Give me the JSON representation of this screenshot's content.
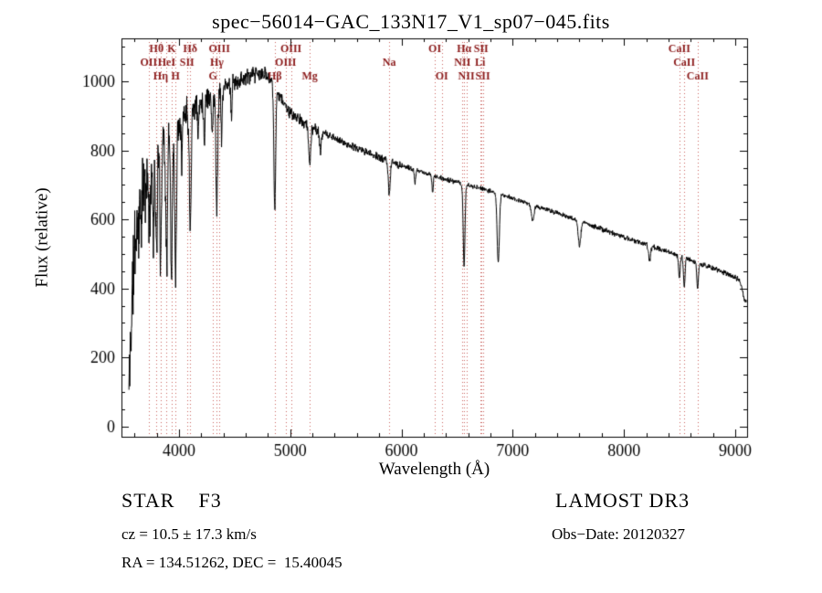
{
  "title": "spec−56014−GAC_133N17_V1_sp07−045.fits",
  "annotations": {
    "star_type": "STAR    F3",
    "survey": "LAMOST DR3",
    "cz": "cz = 10.5 ± 17.3 km/s",
    "obs_date": "Obs−Date: 20120327",
    "coords": "RA = 134.51262, DEC =  15.40045"
  },
  "chart_data": {
    "type": "line",
    "title": "spec−56014−GAC_133N17_V1_sp07−045.fits",
    "xlabel": "Wavelength (Å)",
    "ylabel": "Flux (relative)",
    "xlim": [
      3483,
      9107
    ],
    "ylim": [
      -30,
      1125
    ],
    "xticks": [
      4000,
      5000,
      6000,
      7000,
      8000,
      9000
    ],
    "yticks": [
      0,
      200,
      400,
      600,
      800,
      1000
    ],
    "x_minor_step": 200,
    "y_minor_step": 50,
    "grid": false,
    "legend": "none",
    "line_color": "#000000",
    "marker_color": "#c9615c",
    "marker_label_color": "#8b1a1a",
    "line_markers": [
      {
        "wl": 3798,
        "label": "Hθ",
        "row": 0
      },
      {
        "wl": 3933,
        "label": "K",
        "row": 0
      },
      {
        "wl": 4101,
        "label": "Hδ",
        "row": 0
      },
      {
        "wl": 4363,
        "label": "OIII",
        "row": 0
      },
      {
        "wl": 5007,
        "label": "OIII",
        "row": 0
      },
      {
        "wl": 6300,
        "label": "OI",
        "row": 0
      },
      {
        "wl": 6563,
        "label": "Hα",
        "row": 0
      },
      {
        "wl": 6716,
        "label": "SII",
        "row": 0
      },
      {
        "wl": 8498,
        "label": "CaII",
        "row": 0
      },
      {
        "wl": 3727,
        "label": "OII",
        "row": 1
      },
      {
        "wl": 3889,
        "label": "HeI",
        "row": 1
      },
      {
        "wl": 4072,
        "label": "SII",
        "row": 1
      },
      {
        "wl": 4340,
        "label": "Hγ",
        "row": 1
      },
      {
        "wl": 4959,
        "label": "OIII",
        "row": 1
      },
      {
        "wl": 5890,
        "label": "Na",
        "row": 1
      },
      {
        "wl": 6548,
        "label": "NII",
        "row": 1
      },
      {
        "wl": 6707,
        "label": "Li",
        "row": 1
      },
      {
        "wl": 8542,
        "label": "CaII",
        "row": 1
      },
      {
        "wl": 3835,
        "label": "Hη",
        "row": 2
      },
      {
        "wl": 3968,
        "label": "H",
        "row": 2
      },
      {
        "wl": 4305,
        "label": "G",
        "row": 2
      },
      {
        "wl": 4861,
        "label": "Hβ",
        "row": 2
      },
      {
        "wl": 5175,
        "label": "Mg",
        "row": 2
      },
      {
        "wl": 6363,
        "label": "OI",
        "row": 2
      },
      {
        "wl": 6583,
        "label": "NII",
        "row": 2
      },
      {
        "wl": 6731,
        "label": "SII",
        "row": 2
      },
      {
        "wl": 8662,
        "label": "CaII",
        "row": 2
      }
    ],
    "spectrum": {
      "start": 3550,
      "end": 9100,
      "sample_step": 2.5,
      "seed": 11,
      "continuum": [
        [
          3550,
          100
        ],
        [
          3570,
          300
        ],
        [
          3600,
          520
        ],
        [
          3650,
          620
        ],
        [
          3700,
          690
        ],
        [
          3750,
          750
        ],
        [
          3800,
          800
        ],
        [
          3850,
          835
        ],
        [
          3900,
          858
        ],
        [
          3950,
          872
        ],
        [
          4000,
          890
        ],
        [
          4100,
          918
        ],
        [
          4200,
          942
        ],
        [
          4300,
          963
        ],
        [
          4400,
          982
        ],
        [
          4500,
          998
        ],
        [
          4600,
          1012
        ],
        [
          4700,
          1020
        ],
        [
          4760,
          1021
        ],
        [
          4820,
          1008
        ],
        [
          4880,
          975
        ],
        [
          4940,
          940
        ],
        [
          5000,
          908
        ],
        [
          5100,
          885
        ],
        [
          5200,
          866
        ],
        [
          5300,
          850
        ],
        [
          5400,
          835
        ],
        [
          5500,
          820
        ],
        [
          5600,
          806
        ],
        [
          5700,
          793
        ],
        [
          5800,
          780
        ],
        [
          5900,
          768
        ],
        [
          6000,
          756
        ],
        [
          6100,
          746
        ],
        [
          6200,
          736
        ],
        [
          6300,
          726
        ],
        [
          6400,
          716
        ],
        [
          6500,
          707
        ],
        [
          6600,
          699
        ],
        [
          6700,
          691
        ],
        [
          6800,
          682
        ],
        [
          6900,
          672
        ],
        [
          7000,
          662
        ],
        [
          7100,
          651
        ],
        [
          7200,
          640
        ],
        [
          7300,
          629
        ],
        [
          7400,
          618
        ],
        [
          7500,
          607
        ],
        [
          7600,
          596
        ],
        [
          7700,
          584
        ],
        [
          7800,
          572
        ],
        [
          7900,
          560
        ],
        [
          8000,
          549
        ],
        [
          8100,
          538
        ],
        [
          8200,
          527
        ],
        [
          8300,
          516
        ],
        [
          8400,
          505
        ],
        [
          8500,
          494
        ],
        [
          8600,
          482
        ],
        [
          8700,
          470
        ],
        [
          8800,
          458
        ],
        [
          8900,
          446
        ],
        [
          9000,
          433
        ],
        [
          9040,
          424
        ],
        [
          9060,
          400
        ],
        [
          9080,
          370
        ],
        [
          9100,
          360
        ]
      ],
      "absorption_lines": [
        [
          3735,
          160,
          6
        ],
        [
          3770,
          200,
          6
        ],
        [
          3798,
          300,
          7
        ],
        [
          3835,
          340,
          7
        ],
        [
          3889,
          380,
          8
        ],
        [
          3933,
          430,
          8
        ],
        [
          3970,
          420,
          8
        ],
        [
          4026,
          120,
          5
        ],
        [
          4101,
          330,
          8
        ],
        [
          4172,
          100,
          5
        ],
        [
          4227,
          130,
          5
        ],
        [
          4300,
          120,
          6
        ],
        [
          4340,
          330,
          8
        ],
        [
          4383,
          160,
          5
        ],
        [
          4471,
          100,
          5
        ],
        [
          4861,
          360,
          8
        ],
        [
          5175,
          110,
          9
        ],
        [
          5270,
          60,
          8
        ],
        [
          5890,
          95,
          9
        ],
        [
          6122,
          40,
          6
        ],
        [
          6280,
          50,
          6
        ],
        [
          6563,
          235,
          8
        ],
        [
          6870,
          200,
          10
        ],
        [
          7180,
          45,
          12
        ],
        [
          7600,
          70,
          12
        ],
        [
          8230,
          40,
          10
        ],
        [
          8498,
          65,
          7
        ],
        [
          8542,
          85,
          7
        ],
        [
          8662,
          75,
          7
        ]
      ],
      "noise_segments": [
        [
          3550,
          3700,
          150
        ],
        [
          3700,
          3900,
          95
        ],
        [
          3900,
          4100,
          65
        ],
        [
          4100,
          4400,
          45
        ],
        [
          4400,
          4800,
          30
        ],
        [
          4800,
          5300,
          20
        ],
        [
          5300,
          6000,
          13
        ],
        [
          6000,
          6800,
          9
        ],
        [
          6800,
          7600,
          8
        ],
        [
          7600,
          9100,
          9
        ]
      ]
    }
  }
}
